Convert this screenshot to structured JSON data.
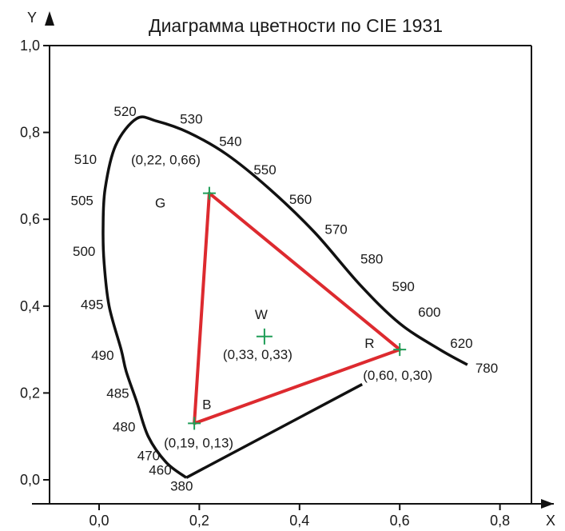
{
  "chart_data": {
    "type": "diagram",
    "title": "Диаграмма цветности по CIE 1931",
    "xlabel": "X",
    "ylabel": "Y",
    "xlim": [
      -0.1,
      0.85
    ],
    "ylim": [
      -0.05,
      1.0
    ],
    "x_ticks": [
      "0,0",
      "0,2",
      "0,4",
      "0,6",
      "0,8"
    ],
    "x_tick_values": [
      0.0,
      0.2,
      0.4,
      0.6,
      0.8
    ],
    "y_ticks": [
      "0,0",
      "0,2",
      "0,4",
      "0,6",
      "0,8",
      "1,0"
    ],
    "y_tick_values": [
      0.0,
      0.2,
      0.4,
      0.6,
      0.8,
      1.0
    ],
    "spectral_locus": [
      [
        0.174,
        0.005
      ],
      [
        0.134,
        0.04
      ],
      [
        0.098,
        0.1
      ],
      [
        0.075,
        0.18
      ],
      [
        0.054,
        0.25
      ],
      [
        0.044,
        0.3
      ],
      [
        0.02,
        0.4
      ],
      [
        0.01,
        0.5
      ],
      [
        0.008,
        0.58
      ],
      [
        0.012,
        0.67
      ],
      [
        0.033,
        0.77
      ],
      [
        0.075,
        0.832
      ],
      [
        0.115,
        0.826
      ],
      [
        0.178,
        0.8
      ],
      [
        0.254,
        0.75
      ],
      [
        0.34,
        0.67
      ],
      [
        0.43,
        0.57
      ],
      [
        0.52,
        0.45
      ],
      [
        0.6,
        0.36
      ],
      [
        0.68,
        0.3
      ],
      [
        0.735,
        0.265
      ]
    ],
    "purple_line": [
      [
        0.174,
        0.005
      ],
      [
        0.525,
        0.22
      ]
    ],
    "wavelength_labels": [
      {
        "label": "380",
        "x": 0.174,
        "y": 0.005
      },
      {
        "label": "460",
        "x": 0.144,
        "y": 0.03
      },
      {
        "label": "470",
        "x": 0.124,
        "y": 0.06
      },
      {
        "label": "480",
        "x": 0.091,
        "y": 0.13
      },
      {
        "label": "485",
        "x": 0.069,
        "y": 0.2
      },
      {
        "label": "490",
        "x": 0.045,
        "y": 0.295
      },
      {
        "label": "495",
        "x": 0.024,
        "y": 0.412
      },
      {
        "label": "500",
        "x": 0.008,
        "y": 0.538
      },
      {
        "label": "505",
        "x": 0.004,
        "y": 0.655
      },
      {
        "label": "510",
        "x": 0.014,
        "y": 0.75
      },
      {
        "label": "520",
        "x": 0.074,
        "y": 0.834
      },
      {
        "label": "530",
        "x": 0.155,
        "y": 0.806
      },
      {
        "label": "540",
        "x": 0.23,
        "y": 0.754
      },
      {
        "label": "550",
        "x": 0.302,
        "y": 0.692
      },
      {
        "label": "560",
        "x": 0.373,
        "y": 0.624
      },
      {
        "label": "570",
        "x": 0.444,
        "y": 0.555
      },
      {
        "label": "580",
        "x": 0.512,
        "y": 0.487
      },
      {
        "label": "590",
        "x": 0.575,
        "y": 0.424
      },
      {
        "label": "600",
        "x": 0.627,
        "y": 0.372
      },
      {
        "label": "620",
        "x": 0.691,
        "y": 0.308
      },
      {
        "label": "780",
        "x": 0.735,
        "y": 0.265
      }
    ],
    "gamut_triangle": [
      [
        0.22,
        0.66
      ],
      [
        0.6,
        0.3
      ],
      [
        0.19,
        0.13
      ]
    ],
    "points": [
      {
        "name": "G",
        "coord_label": "(0,22, 0,66)",
        "x": 0.22,
        "y": 0.66
      },
      {
        "name": "R",
        "coord_label": "(0,60, 0,30)",
        "x": 0.6,
        "y": 0.3
      },
      {
        "name": "B",
        "coord_label": "(0,19, 0,13)",
        "x": 0.19,
        "y": 0.13
      },
      {
        "name": "W",
        "coord_label": "(0,33, 0,33)",
        "x": 0.33,
        "y": 0.33
      }
    ],
    "grid": false,
    "legend": "none"
  },
  "colors": {
    "axis": "#111111",
    "locus": "#111111",
    "triangle": "#dd2a2f",
    "marker": "#1e9e57"
  }
}
